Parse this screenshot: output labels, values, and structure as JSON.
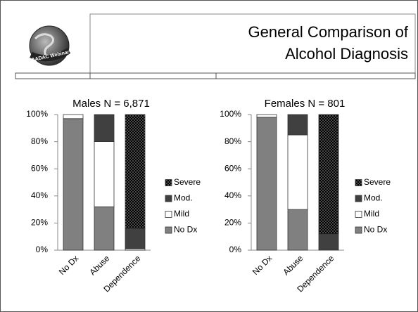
{
  "header": {
    "logo_text": "NAADAC Webinars",
    "title_lines": [
      "General Comparison of",
      "Alcohol Diagnosis"
    ]
  },
  "chart_data": [
    {
      "type": "bar",
      "stacked": true,
      "title": "Males  N = 6,871",
      "categories": [
        "No Dx",
        "Abuse",
        "Dependence"
      ],
      "series": [
        {
          "name": "No Dx",
          "color": "#808080",
          "values": [
            97,
            32,
            0
          ]
        },
        {
          "name": "Mild",
          "color": "#ffffff",
          "values": [
            3,
            48,
            1
          ]
        },
        {
          "name": "Mod.",
          "color": "#404040",
          "values": [
            0,
            20,
            15
          ]
        },
        {
          "name": "Severe",
          "color": "#000000",
          "pattern": "dots",
          "values": [
            0,
            0,
            84
          ]
        }
      ],
      "ylim": [
        0,
        100
      ],
      "yticks": [
        {
          "value": 0,
          "label": "0%"
        },
        {
          "value": 20,
          "label": "20%"
        },
        {
          "value": 40,
          "label": "40%"
        },
        {
          "value": 60,
          "label": "60%"
        },
        {
          "value": 80,
          "label": "80%"
        },
        {
          "value": 100,
          "label": "100%"
        }
      ],
      "legend": "right"
    },
    {
      "type": "bar",
      "stacked": true,
      "title": "Females  N = 801",
      "categories": [
        "No Dx",
        "Abuse",
        "Dependence"
      ],
      "series": [
        {
          "name": "No Dx",
          "color": "#808080",
          "values": [
            98,
            30,
            0
          ]
        },
        {
          "name": "Mild",
          "color": "#ffffff",
          "values": [
            2,
            55,
            0
          ]
        },
        {
          "name": "Mod.",
          "color": "#404040",
          "values": [
            0,
            15,
            12
          ]
        },
        {
          "name": "Severe",
          "color": "#000000",
          "pattern": "dots",
          "values": [
            0,
            0,
            88
          ]
        }
      ],
      "ylim": [
        0,
        100
      ],
      "yticks": [
        {
          "value": 0,
          "label": "0%"
        },
        {
          "value": 20,
          "label": "20%"
        },
        {
          "value": 40,
          "label": "40%"
        },
        {
          "value": 60,
          "label": "60%"
        },
        {
          "value": 80,
          "label": "80%"
        },
        {
          "value": 100,
          "label": "100%"
        }
      ],
      "legend": "right"
    }
  ]
}
